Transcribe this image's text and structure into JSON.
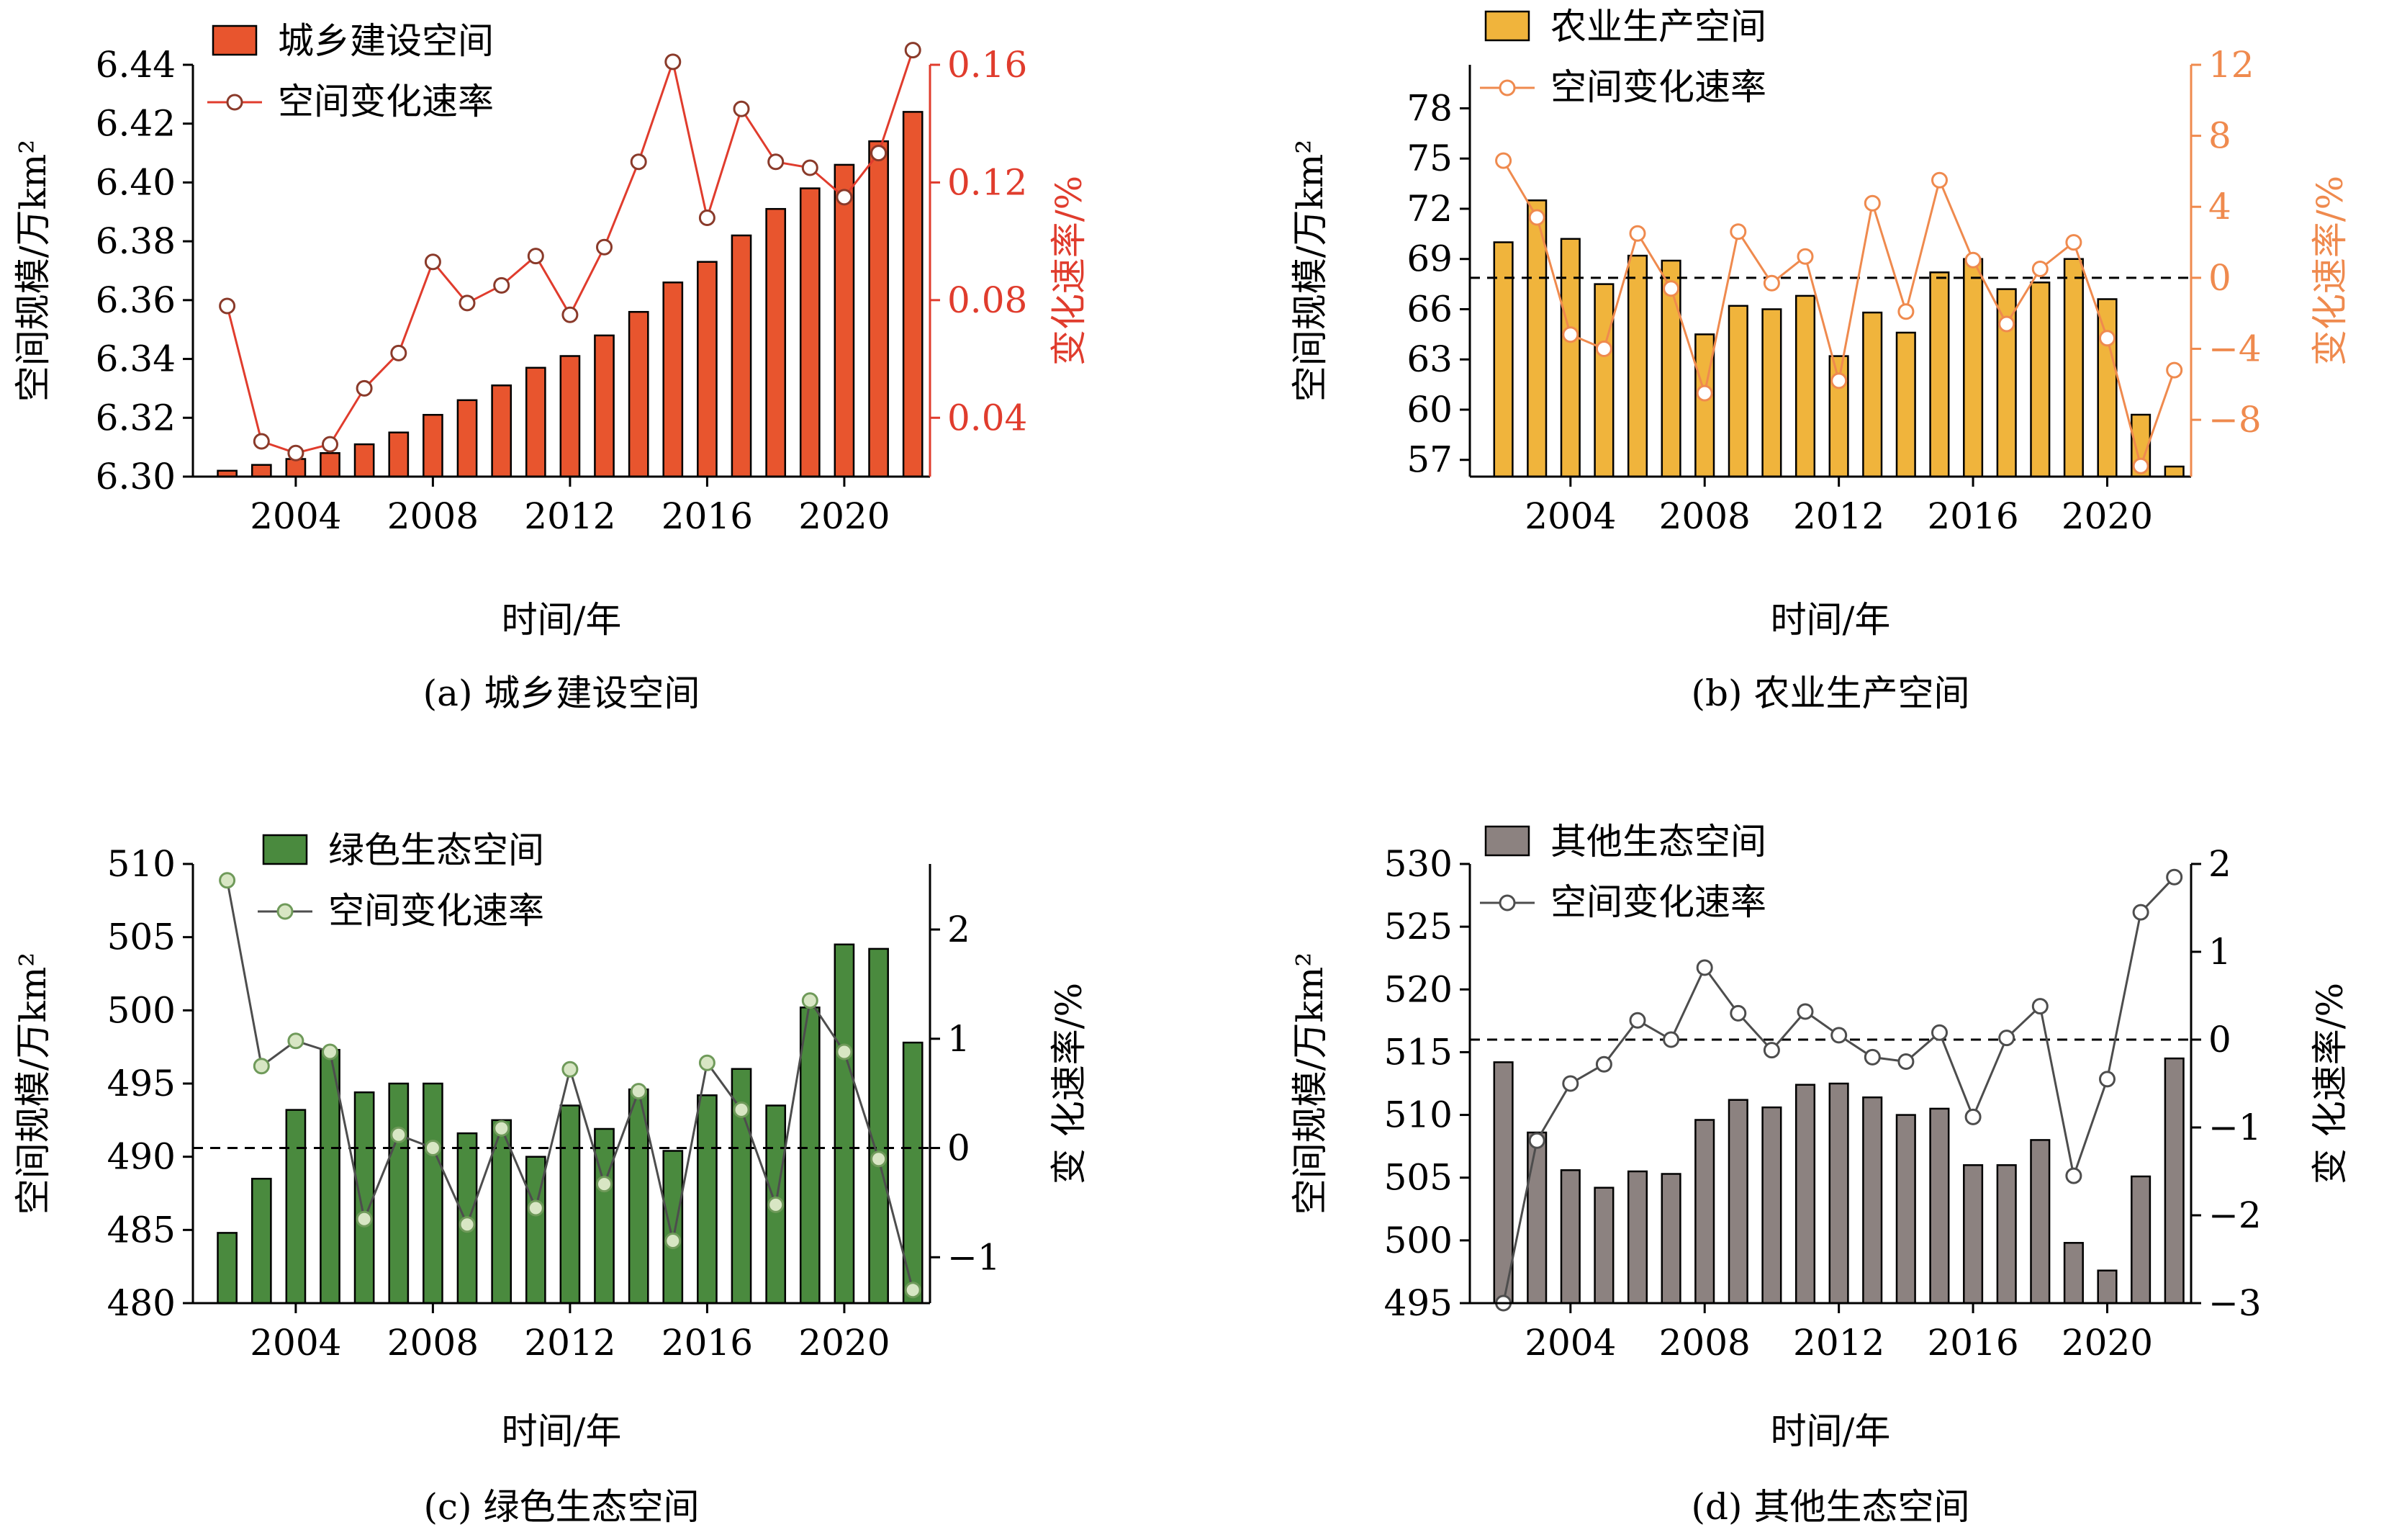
{
  "colors": {
    "axis": "#000000",
    "text": "#000000",
    "grid": "#000000"
  },
  "chart_data": [
    {
      "type": "bar+line",
      "caption": "(a) 城乡建设空间",
      "xlabel": "时间/年",
      "ylabel": "空间规模/万km²",
      "y2label": "变化速率/%",
      "x_ticks": [
        2004,
        2008,
        2012,
        2016,
        2020
      ],
      "years": [
        2002,
        2003,
        2004,
        2005,
        2006,
        2007,
        2008,
        2009,
        2010,
        2011,
        2012,
        2013,
        2014,
        2015,
        2016,
        2017,
        2018,
        2019,
        2020,
        2021,
        2022
      ],
      "ylim": [
        6.3,
        6.44
      ],
      "y_ticks": [
        "6.30",
        "6.32",
        "6.34",
        "6.36",
        "6.38",
        "6.40",
        "6.42",
        "6.44"
      ],
      "y2lim": [
        0.02,
        0.16
      ],
      "y2_ticks": [
        "0.04",
        "0.08",
        "0.12",
        "0.16"
      ],
      "y2_color": "#e03c2d",
      "legend": {
        "position": "top-left"
      },
      "series": [
        {
          "name": "城乡建设空间",
          "kind": "bar",
          "axis": "left",
          "color": "#e8552e",
          "values": [
            6.302,
            6.304,
            6.306,
            6.308,
            6.311,
            6.315,
            6.321,
            6.326,
            6.331,
            6.337,
            6.341,
            6.348,
            6.356,
            6.366,
            6.373,
            6.382,
            6.391,
            6.398,
            6.406,
            6.414,
            6.424
          ]
        },
        {
          "name": "空间变化速率",
          "kind": "line",
          "axis": "right",
          "color": "#e03c2d",
          "marker_fill": "#ffffff",
          "marker_stroke": "#8a3a2a",
          "values": [
            0.078,
            0.032,
            0.028,
            0.031,
            0.05,
            0.062,
            0.093,
            0.079,
            0.085,
            0.095,
            0.075,
            0.098,
            0.127,
            0.161,
            0.108,
            0.145,
            0.127,
            0.125,
            0.115,
            0.13,
            0.165
          ]
        }
      ]
    },
    {
      "type": "bar+line",
      "caption": "(b) 农业生产空间",
      "xlabel": "时间/年",
      "ylabel": "空间规模/万km²",
      "y2label": "变化速率/%",
      "x_ticks": [
        2004,
        2008,
        2012,
        2016,
        2020
      ],
      "years": [
        2002,
        2003,
        2004,
        2005,
        2006,
        2007,
        2008,
        2009,
        2010,
        2011,
        2012,
        2013,
        2014,
        2015,
        2016,
        2017,
        2018,
        2019,
        2020,
        2021,
        2022
      ],
      "ylim": [
        56,
        80.6
      ],
      "y_ticks": [
        "57",
        "60",
        "63",
        "66",
        "69",
        "72",
        "75",
        "78"
      ],
      "y2lim": [
        -11.2,
        12
      ],
      "y2_ticks": [
        "−8",
        "−4",
        "0",
        "4",
        "8",
        "12"
      ],
      "y2_color": "#ef8a4e",
      "dashed_zero": 0,
      "legend": {
        "position": "top-left"
      },
      "series": [
        {
          "name": "农业生产空间",
          "kind": "bar",
          "axis": "left",
          "color": "#f0b43c",
          "values": [
            70.0,
            72.5,
            70.2,
            67.5,
            69.2,
            68.9,
            64.5,
            66.2,
            66.0,
            66.8,
            63.2,
            65.8,
            64.6,
            68.2,
            69.0,
            67.2,
            67.6,
            69.0,
            66.6,
            59.7,
            56.6
          ]
        },
        {
          "name": "空间变化速率",
          "kind": "line",
          "axis": "right",
          "color": "#ef8a4e",
          "marker_fill": "#ffffff",
          "marker_stroke": "#ef8a4e",
          "values": [
            6.6,
            3.4,
            -3.2,
            -4.0,
            2.5,
            -0.6,
            -6.5,
            2.6,
            -0.3,
            1.2,
            -5.8,
            4.2,
            -1.9,
            5.5,
            1.0,
            -2.6,
            0.5,
            2.0,
            -3.4,
            -10.6,
            -5.2
          ]
        }
      ]
    },
    {
      "type": "bar+line",
      "caption": "(c) 绿色生态空间",
      "xlabel": "时间/年",
      "ylabel": "空间规模/万km²",
      "y2label": "变 化速率/%",
      "x_ticks": [
        2004,
        2008,
        2012,
        2016,
        2020
      ],
      "years": [
        2002,
        2003,
        2004,
        2005,
        2006,
        2007,
        2008,
        2009,
        2010,
        2011,
        2012,
        2013,
        2014,
        2015,
        2016,
        2017,
        2018,
        2019,
        2020,
        2021,
        2022
      ],
      "ylim": [
        480,
        510
      ],
      "y_ticks": [
        "480",
        "485",
        "490",
        "495",
        "500",
        "505",
        "510"
      ],
      "y2lim": [
        -1.42,
        2.6
      ],
      "y2_ticks": [
        "−1",
        "0",
        "1",
        "2"
      ],
      "y2_color": "#000000",
      "dashed_zero": 0,
      "legend": {
        "position": "top-left"
      },
      "series": [
        {
          "name": "绿色生态空间",
          "kind": "bar",
          "axis": "left",
          "color": "#4a8a3e",
          "values": [
            484.8,
            488.5,
            493.2,
            497.3,
            494.4,
            495.0,
            495.0,
            491.6,
            492.5,
            490.0,
            493.5,
            491.9,
            494.6,
            490.4,
            494.2,
            496.0,
            493.5,
            500.2,
            504.5,
            504.2,
            497.8
          ]
        },
        {
          "name": "空间变化速率",
          "kind": "line",
          "axis": "right",
          "color": "#4d4d4d",
          "marker_fill": "#d8e6c4",
          "marker_stroke": "#6f9a5a",
          "values": [
            2.45,
            0.75,
            0.98,
            0.88,
            -0.65,
            0.12,
            0.0,
            -0.7,
            0.18,
            -0.55,
            0.72,
            -0.33,
            0.52,
            -0.85,
            0.78,
            0.35,
            -0.52,
            1.35,
            0.88,
            -0.1,
            -1.3
          ]
        }
      ]
    },
    {
      "type": "bar+line",
      "caption": "(d) 其他生态空间",
      "xlabel": "时间/年",
      "ylabel": "空间规模/万km²",
      "y2label": "变 化速率/%",
      "x_ticks": [
        2004,
        2008,
        2012,
        2016,
        2020
      ],
      "years": [
        2002,
        2003,
        2004,
        2005,
        2006,
        2007,
        2008,
        2009,
        2010,
        2011,
        2012,
        2013,
        2014,
        2015,
        2016,
        2017,
        2018,
        2019,
        2020,
        2021,
        2022
      ],
      "ylim": [
        495,
        530
      ],
      "y_ticks": [
        "495",
        "500",
        "505",
        "510",
        "515",
        "520",
        "525",
        "530"
      ],
      "y2lim": [
        -3.0,
        2.0
      ],
      "y2_ticks": [
        "−3",
        "−2",
        "−1",
        "0",
        "1",
        "2"
      ],
      "y2_color": "#000000",
      "dashed_zero": 0,
      "legend": {
        "position": "top-left"
      },
      "series": [
        {
          "name": "其他生态空间",
          "kind": "bar",
          "axis": "left",
          "color": "#8c8280",
          "values": [
            514.2,
            508.6,
            505.6,
            504.2,
            505.5,
            505.3,
            509.6,
            511.2,
            510.6,
            512.4,
            512.5,
            511.4,
            510.0,
            510.5,
            506.0,
            506.0,
            508.0,
            499.8,
            497.6,
            505.1,
            514.5
          ]
        },
        {
          "name": "空间变化速率",
          "kind": "line",
          "axis": "right",
          "color": "#4d4d4d",
          "marker_fill": "#ffffff",
          "marker_stroke": "#4d4d4d",
          "values": [
            -3.0,
            -1.15,
            -0.5,
            -0.28,
            0.22,
            0.0,
            0.82,
            0.3,
            -0.12,
            0.32,
            0.05,
            -0.2,
            -0.25,
            0.08,
            -0.88,
            0.02,
            0.38,
            -1.55,
            -0.45,
            1.45,
            1.85
          ]
        }
      ]
    }
  ]
}
